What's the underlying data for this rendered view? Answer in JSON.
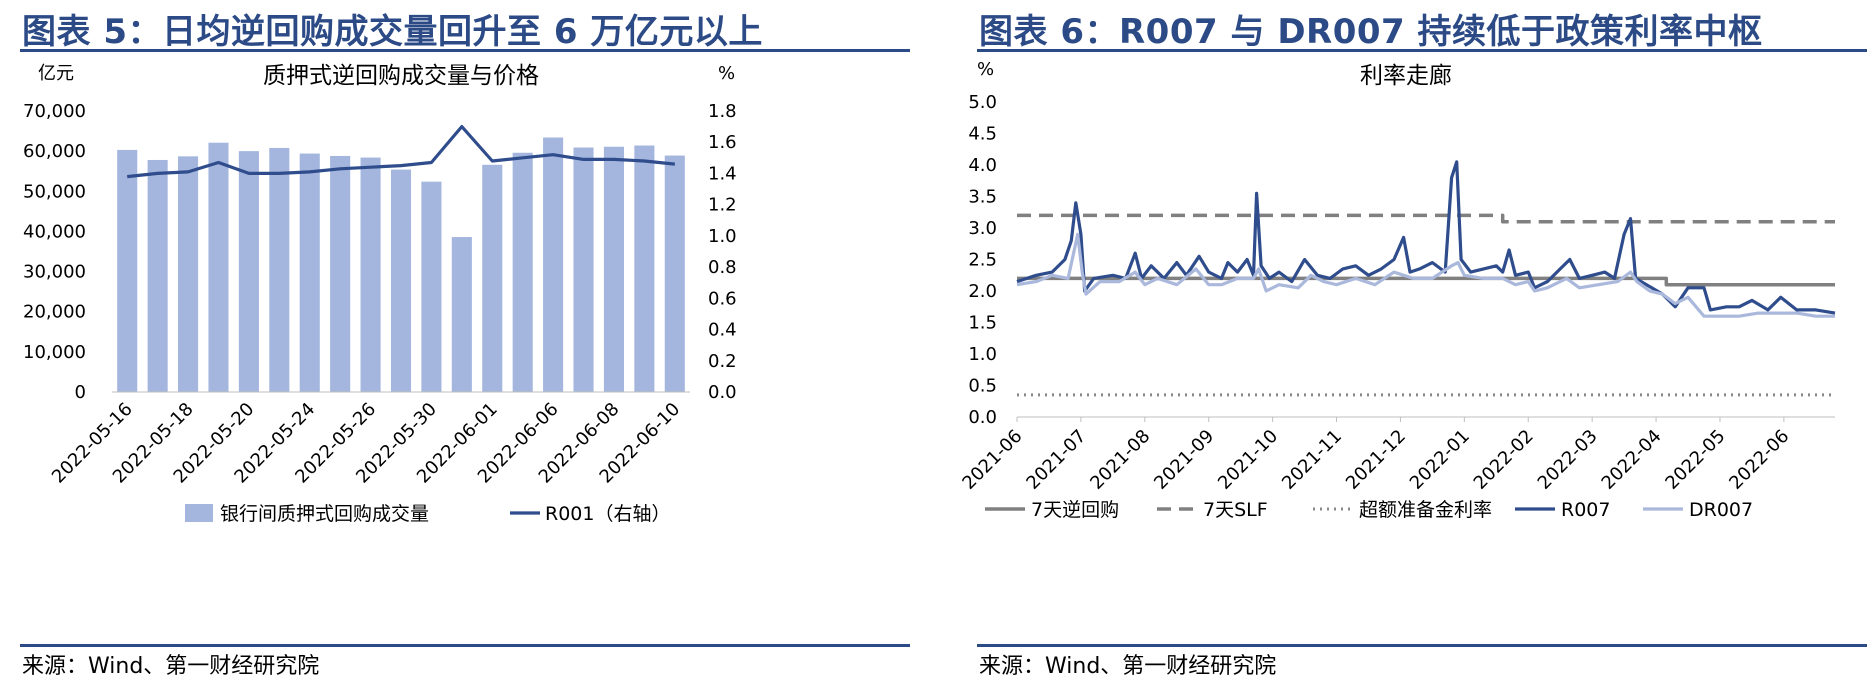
{
  "left": {
    "figure_title": "图表 5：日均逆回购成交量回升至 6 万亿元以上",
    "source": "来源：Wind、第一财经研究院",
    "colors": {
      "bars": "#a4b6de",
      "line": "#2f4c8c",
      "accent": "#2b4a86"
    }
  },
  "right": {
    "figure_title": "图表 6：R007 与 DR007 持续低于政策利率中枢",
    "source": "来源：Wind、第一财经研究院",
    "colors": {
      "reverse_repo": "#808080",
      "slf": "#808080",
      "excess_reserve": "#888888",
      "r007": "#2f4c8c",
      "dr007": "#aab8dc"
    }
  },
  "chart_data": [
    {
      "type": "bar",
      "title": "质押式逆回购成交量与价格",
      "y_unit": "亿元",
      "y2_unit": "%",
      "ylim": [
        0,
        70000
      ],
      "y2lim": [
        0.0,
        1.8
      ],
      "y_ticks": [
        "70,000",
        "60,000",
        "50,000",
        "40,000",
        "30,000",
        "20,000",
        "10,000",
        "0"
      ],
      "y2_ticks": [
        "1.8",
        "1.6",
        "1.4",
        "1.2",
        "1.0",
        "0.8",
        "0.6",
        "0.4",
        "0.2",
        "0.0"
      ],
      "x_tick_labels": [
        "2022-05-16",
        "2022-05-18",
        "2022-05-20",
        "2022-05-24",
        "2022-05-26",
        "2022-05-30",
        "2022-06-01",
        "2022-06-06",
        "2022-06-08",
        "2022-06-10"
      ],
      "legend_position": "bottom",
      "series": [
        {
          "name": "银行间质押式回购成交量",
          "type": "bar",
          "values": [
            60300,
            57800,
            58700,
            62100,
            60000,
            60800,
            59400,
            58800,
            58400,
            55400,
            52400,
            38600,
            56600,
            59600,
            63400,
            60900,
            61100,
            61400,
            58900
          ]
        },
        {
          "name": "R001（右轴）",
          "type": "line",
          "axis": "right",
          "values": [
            1.38,
            1.4,
            1.41,
            1.47,
            1.4,
            1.4,
            1.41,
            1.43,
            1.44,
            1.45,
            1.47,
            1.7,
            1.48,
            1.5,
            1.52,
            1.49,
            1.49,
            1.48,
            1.46
          ]
        }
      ]
    },
    {
      "type": "line",
      "title": "利率走廊",
      "y_unit": "%",
      "ylim": [
        0.0,
        5.0
      ],
      "y_ticks": [
        "5.0",
        "4.5",
        "4.0",
        "3.5",
        "3.0",
        "2.5",
        "2.0",
        "1.5",
        "1.0",
        "0.5",
        "0.0"
      ],
      "x_tick_labels": [
        "2021-06",
        "2021-07",
        "2021-08",
        "2021-09",
        "2021-10",
        "2021-11",
        "2021-12",
        "2022-01",
        "2022-02",
        "2022-03",
        "2022-04",
        "2022-05",
        "2022-06"
      ],
      "legend_position": "bottom",
      "series": [
        {
          "name": "7天逆回购",
          "style": "solid",
          "points": [
            [
              0,
              2.2
            ],
            [
              10.16,
              2.2
            ],
            [
              10.16,
              2.1
            ],
            [
              12.8,
              2.1
            ]
          ]
        },
        {
          "name": "7天SLF",
          "style": "dashed",
          "points": [
            [
              0,
              3.2
            ],
            [
              7.6,
              3.2
            ],
            [
              7.6,
              3.1
            ],
            [
              12.8,
              3.1
            ]
          ]
        },
        {
          "name": "超额准备金利率",
          "style": "dotted",
          "points": [
            [
              0,
              0.35
            ],
            [
              12.8,
              0.35
            ]
          ]
        },
        {
          "name": "R007",
          "style": "solid-thick",
          "points": [
            [
              0,
              2.15
            ],
            [
              0.3,
              2.25
            ],
            [
              0.55,
              2.3
            ],
            [
              0.75,
              2.5
            ],
            [
              0.85,
              2.8
            ],
            [
              0.92,
              3.4
            ],
            [
              1.0,
              2.9
            ],
            [
              1.06,
              2.0
            ],
            [
              1.2,
              2.2
            ],
            [
              1.5,
              2.25
            ],
            [
              1.7,
              2.2
            ],
            [
              1.85,
              2.6
            ],
            [
              1.95,
              2.2
            ],
            [
              2.1,
              2.4
            ],
            [
              2.3,
              2.2
            ],
            [
              2.5,
              2.45
            ],
            [
              2.65,
              2.25
            ],
            [
              2.85,
              2.55
            ],
            [
              3.0,
              2.3
            ],
            [
              3.2,
              2.2
            ],
            [
              3.3,
              2.45
            ],
            [
              3.45,
              2.3
            ],
            [
              3.6,
              2.5
            ],
            [
              3.7,
              2.25
            ],
            [
              3.75,
              3.55
            ],
            [
              3.82,
              2.4
            ],
            [
              3.95,
              2.2
            ],
            [
              4.1,
              2.3
            ],
            [
              4.3,
              2.15
            ],
            [
              4.5,
              2.5
            ],
            [
              4.7,
              2.25
            ],
            [
              4.9,
              2.2
            ],
            [
              5.1,
              2.35
            ],
            [
              5.3,
              2.4
            ],
            [
              5.5,
              2.25
            ],
            [
              5.7,
              2.35
            ],
            [
              5.9,
              2.5
            ],
            [
              6.05,
              2.85
            ],
            [
              6.15,
              2.3
            ],
            [
              6.3,
              2.35
            ],
            [
              6.5,
              2.45
            ],
            [
              6.7,
              2.3
            ],
            [
              6.8,
              3.8
            ],
            [
              6.88,
              4.05
            ],
            [
              6.95,
              2.5
            ],
            [
              7.1,
              2.3
            ],
            [
              7.3,
              2.35
            ],
            [
              7.5,
              2.4
            ],
            [
              7.6,
              2.3
            ],
            [
              7.7,
              2.65
            ],
            [
              7.8,
              2.25
            ],
            [
              8.0,
              2.3
            ],
            [
              8.1,
              2.05
            ],
            [
              8.3,
              2.15
            ],
            [
              8.5,
              2.35
            ],
            [
              8.65,
              2.5
            ],
            [
              8.8,
              2.2
            ],
            [
              9.0,
              2.25
            ],
            [
              9.2,
              2.3
            ],
            [
              9.35,
              2.2
            ],
            [
              9.5,
              2.9
            ],
            [
              9.6,
              3.15
            ],
            [
              9.68,
              2.2
            ],
            [
              9.85,
              2.1
            ],
            [
              10.1,
              1.95
            ],
            [
              10.3,
              1.75
            ],
            [
              10.5,
              2.05
            ],
            [
              10.75,
              2.05
            ],
            [
              10.85,
              1.7
            ],
            [
              11.1,
              1.75
            ],
            [
              11.3,
              1.75
            ],
            [
              11.5,
              1.85
            ],
            [
              11.75,
              1.7
            ],
            [
              11.95,
              1.9
            ],
            [
              12.2,
              1.7
            ],
            [
              12.5,
              1.7
            ],
            [
              12.8,
              1.65
            ]
          ]
        },
        {
          "name": "DR007",
          "style": "solid-light",
          "points": [
            [
              0,
              2.1
            ],
            [
              0.3,
              2.15
            ],
            [
              0.55,
              2.25
            ],
            [
              0.8,
              2.2
            ],
            [
              0.95,
              2.9
            ],
            [
              1.02,
              2.3
            ],
            [
              1.08,
              1.95
            ],
            [
              1.3,
              2.15
            ],
            [
              1.6,
              2.15
            ],
            [
              1.85,
              2.3
            ],
            [
              2.0,
              2.1
            ],
            [
              2.2,
              2.2
            ],
            [
              2.5,
              2.1
            ],
            [
              2.8,
              2.35
            ],
            [
              3.0,
              2.1
            ],
            [
              3.2,
              2.1
            ],
            [
              3.45,
              2.2
            ],
            [
              3.7,
              2.2
            ],
            [
              3.78,
              2.35
            ],
            [
              3.9,
              2.0
            ],
            [
              4.1,
              2.1
            ],
            [
              4.4,
              2.05
            ],
            [
              4.6,
              2.25
            ],
            [
              4.8,
              2.15
            ],
            [
              5.0,
              2.1
            ],
            [
              5.3,
              2.2
            ],
            [
              5.6,
              2.1
            ],
            [
              5.9,
              2.3
            ],
            [
              6.2,
              2.2
            ],
            [
              6.5,
              2.2
            ],
            [
              6.8,
              2.4
            ],
            [
              6.9,
              2.45
            ],
            [
              7.0,
              2.25
            ],
            [
              7.3,
              2.2
            ],
            [
              7.6,
              2.2
            ],
            [
              7.8,
              2.1
            ],
            [
              8.0,
              2.15
            ],
            [
              8.1,
              2.0
            ],
            [
              8.3,
              2.05
            ],
            [
              8.6,
              2.2
            ],
            [
              8.8,
              2.05
            ],
            [
              9.1,
              2.1
            ],
            [
              9.4,
              2.15
            ],
            [
              9.6,
              2.3
            ],
            [
              9.7,
              2.15
            ],
            [
              9.9,
              2.0
            ],
            [
              10.1,
              1.95
            ],
            [
              10.3,
              1.8
            ],
            [
              10.5,
              1.9
            ],
            [
              10.75,
              1.6
            ],
            [
              11.0,
              1.6
            ],
            [
              11.3,
              1.6
            ],
            [
              11.6,
              1.65
            ],
            [
              11.9,
              1.65
            ],
            [
              12.2,
              1.65
            ],
            [
              12.5,
              1.6
            ],
            [
              12.8,
              1.6
            ]
          ]
        }
      ]
    }
  ]
}
